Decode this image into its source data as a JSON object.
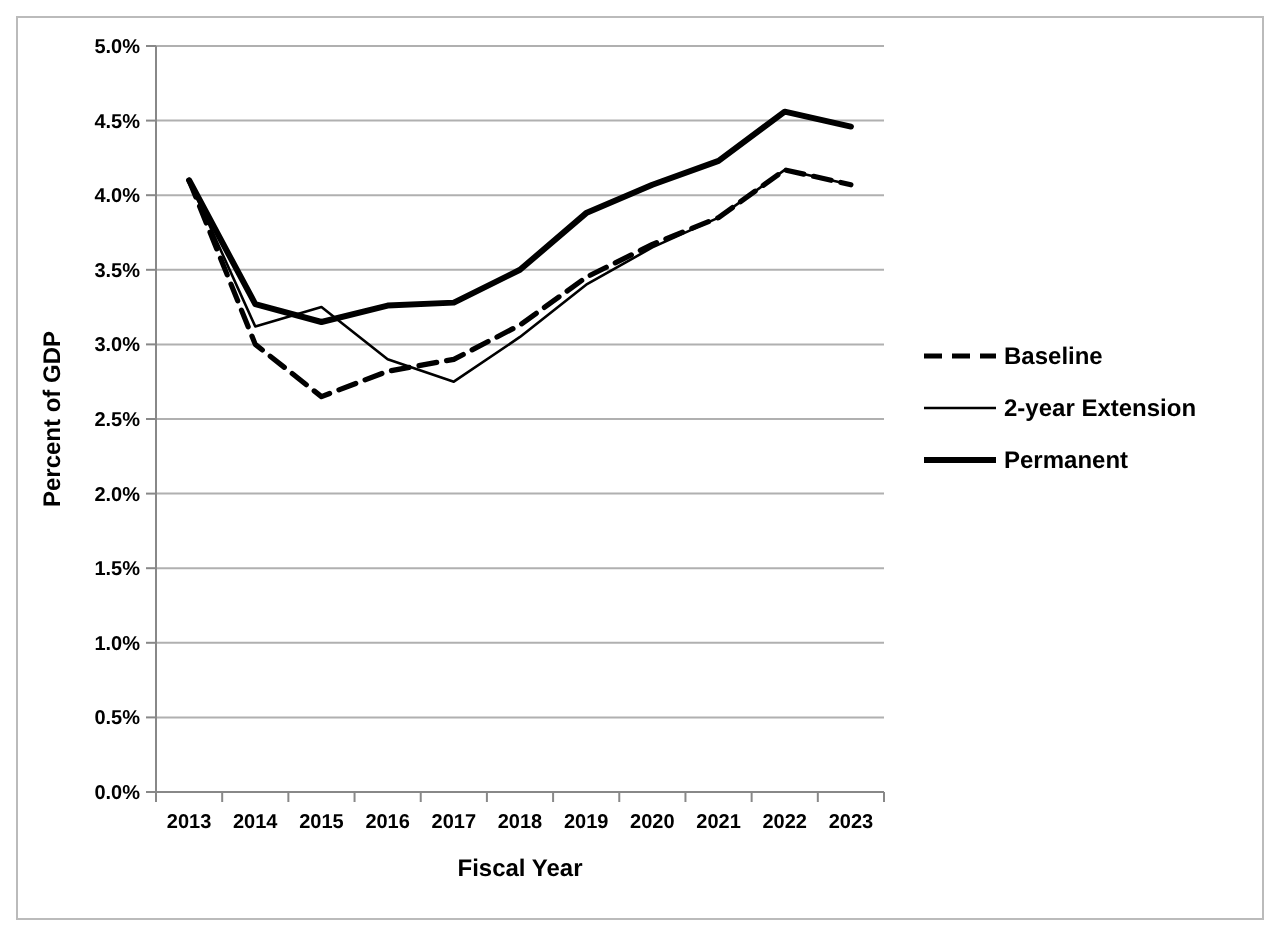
{
  "chart_data": {
    "type": "line",
    "xlabel": "Fiscal Year",
    "ylabel": "Percent of GDP",
    "categories": [
      "2013",
      "2014",
      "2015",
      "2016",
      "2017",
      "2018",
      "2019",
      "2020",
      "2021",
      "2022",
      "2023"
    ],
    "series": [
      {
        "name": "Baseline",
        "color": "#000000",
        "line_style": "dashed",
        "values": [
          4.1,
          3.0,
          2.65,
          2.82,
          2.9,
          3.13,
          3.45,
          3.67,
          3.85,
          4.17,
          4.07
        ]
      },
      {
        "name": "2-year Extension",
        "color": "#000000",
        "line_style": "solid",
        "values": [
          4.1,
          3.12,
          3.25,
          2.9,
          2.75,
          3.05,
          3.4,
          3.65,
          3.85,
          4.17,
          4.07
        ]
      },
      {
        "name": "Permanent",
        "color": "#000000",
        "line_style": "solid",
        "values": [
          4.1,
          3.27,
          3.15,
          3.26,
          3.28,
          3.5,
          3.88,
          4.07,
          4.23,
          4.56,
          4.46
        ]
      }
    ],
    "ylim": [
      0,
      5
    ],
    "yticks": [
      {
        "value": 0,
        "label": "0.0%"
      },
      {
        "value": 0.5,
        "label": "0.5%"
      },
      {
        "value": 1,
        "label": "1.0%"
      },
      {
        "value": 1.5,
        "label": "1.5%"
      },
      {
        "value": 2,
        "label": "2.0%"
      },
      {
        "value": 2.5,
        "label": "2.5%"
      },
      {
        "value": 3,
        "label": "3.0%"
      },
      {
        "value": 3.5,
        "label": "3.5%"
      },
      {
        "value": 4,
        "label": "4.0%"
      },
      {
        "value": 4.5,
        "label": "4.5%"
      },
      {
        "value": 5,
        "label": "5.0%"
      }
    ],
    "grid": "y",
    "legend": "right",
    "marker": "none"
  }
}
